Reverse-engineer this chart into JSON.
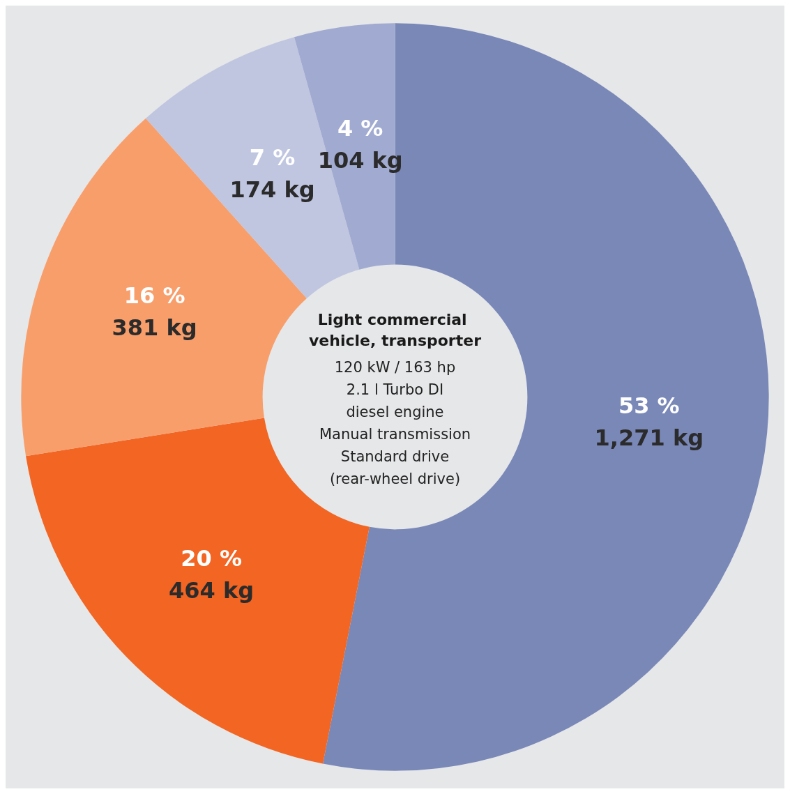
{
  "chart_data": {
    "type": "donut",
    "title": "Light commercial vehicle, transporter",
    "subtitle": "120 kW / 163 hp\n2.1 l Turbo DI\ndiesel engine\nManual transmission\nStandard drive\n(rear-wheel drive)",
    "categories": [
      null,
      null,
      null,
      null,
      null
    ],
    "values": [
      1271,
      464,
      381,
      174,
      104
    ],
    "value_labels": [
      "53 %\n1,271 kg",
      "20 %\n464 kg",
      "16 %\n381 kg",
      "7 %\n174 kg",
      "4 %\n104 kg"
    ],
    "colors": [
      "#7a88b8",
      "#f26522",
      "#f89e6b",
      "#c0c6e0",
      "#a1abd1"
    ]
  }
}
